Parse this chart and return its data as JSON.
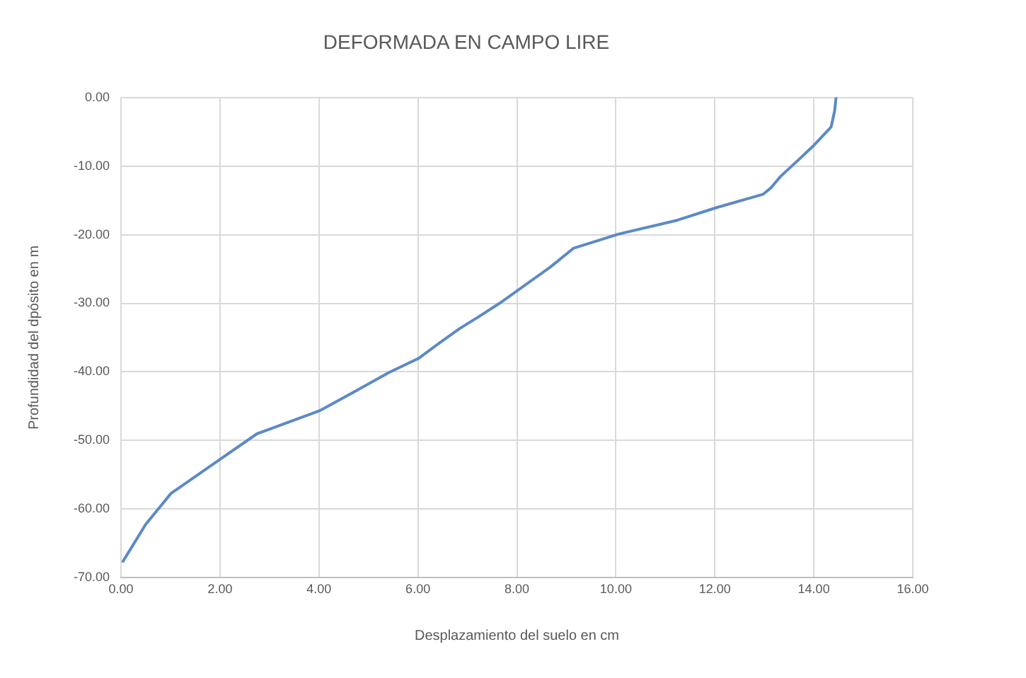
{
  "chart_data": {
    "type": "line",
    "title": "DEFORMADA EN CAMPO LIRE",
    "xlabel": "Desplazamiento del suelo en cm",
    "ylabel": "Profundidad del dpósito en m",
    "series": [
      {
        "color": "#5b8ac6",
        "x": [
          14.45,
          14.42,
          14.35,
          14.0,
          13.69,
          13.33,
          13.13,
          12.98,
          12.06,
          11.24,
          10.06,
          9.14,
          8.68,
          7.65,
          7.22,
          6.84,
          6.43,
          6.02,
          5.41,
          4.69,
          4.03,
          2.75,
          2.03,
          1.01,
          0.91,
          0.5,
          0.04
        ],
        "values": [
          0,
          -2,
          -4.3,
          -7.0,
          -9.1,
          -11.5,
          -13.2,
          -14.1,
          -16.0,
          -17.9,
          -19.9,
          -22.0,
          -24.7,
          -30.0,
          -32.0,
          -33.7,
          -35.8,
          -38.0,
          -40.1,
          -43.0,
          -45.6,
          -49.0,
          -52.6,
          -57.7,
          -58.6,
          -62.2,
          -67.6
        ]
      }
    ],
    "xlim": [
      0,
      16
    ],
    "ylim": [
      -70,
      0
    ],
    "xticks": [
      {
        "value": 0,
        "label": "0.00"
      },
      {
        "value": 2,
        "label": "2.00"
      },
      {
        "value": 4,
        "label": "4.00"
      },
      {
        "value": 6,
        "label": "6.00"
      },
      {
        "value": 8,
        "label": "8.00"
      },
      {
        "value": 10,
        "label": "10.00"
      },
      {
        "value": 12,
        "label": "12.00"
      },
      {
        "value": 14,
        "label": "14.00"
      },
      {
        "value": 16,
        "label": "16.00"
      }
    ],
    "yticks": [
      {
        "value": 0,
        "label": "0.00"
      },
      {
        "value": -10,
        "label": "-10.00"
      },
      {
        "value": -20,
        "label": "-20.00"
      },
      {
        "value": -30,
        "label": "-30.00"
      },
      {
        "value": -40,
        "label": "-40.00"
      },
      {
        "value": -50,
        "label": "-50.00"
      },
      {
        "value": -60,
        "label": "-60.00"
      },
      {
        "value": -70,
        "label": "-70.00"
      }
    ],
    "grid": true,
    "legend": false,
    "marker": "none",
    "line_style": "solid"
  }
}
